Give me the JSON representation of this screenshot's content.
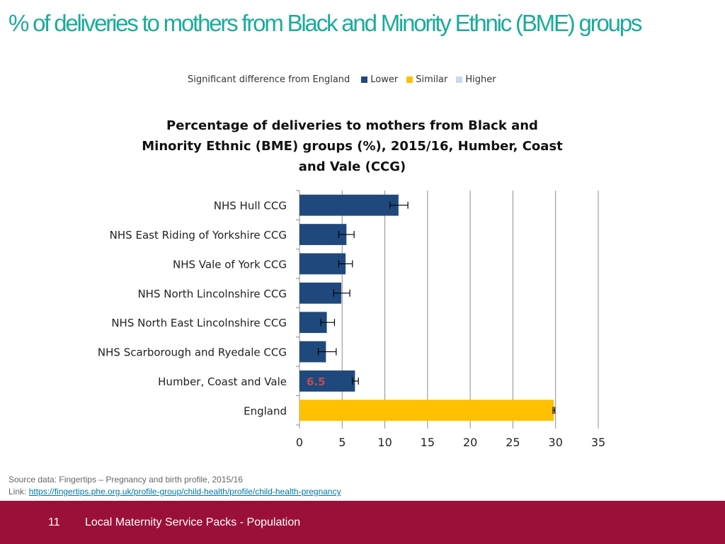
{
  "slide": {
    "title": "% of deliveries to mothers from Black and Minority Ethnic (BME) groups"
  },
  "legend": {
    "title": "Significant difference from England",
    "items": [
      {
        "label": "Lower",
        "color": "#1f497d"
      },
      {
        "label": "Similar",
        "color": "#ffc000"
      },
      {
        "label": "Higher",
        "color": "#c6d9f1"
      }
    ]
  },
  "chart_data": {
    "type": "bar",
    "orientation": "horizontal",
    "title": "Percentage of deliveries to mothers from Black and Minority Ethnic (BME) groups (%), 2015/16, Humber, Coast and Vale (CCG)",
    "xlabel": "",
    "ylabel": "",
    "xlim": [
      0,
      35
    ],
    "xticks": [
      0,
      5,
      10,
      15,
      20,
      25,
      30,
      35
    ],
    "grid": true,
    "categories": [
      "NHS Hull CCG",
      "NHS East Riding of Yorkshire CCG",
      "NHS Vale of York CCG",
      "NHS North Lincolnshire CCG",
      "NHS North East Lincolnshire CCG",
      "NHS Scarborough and Ryedale CCG",
      "Humber, Coast and Vale",
      "England"
    ],
    "values": [
      11.6,
      5.5,
      5.4,
      4.9,
      3.2,
      3.1,
      6.5,
      29.8
    ],
    "ci_lower": [
      10.6,
      4.6,
      4.6,
      4.0,
      2.5,
      2.2,
      6.2,
      29.7
    ],
    "ci_upper": [
      12.7,
      6.4,
      6.2,
      5.9,
      4.1,
      4.3,
      6.9,
      29.9
    ],
    "significance": [
      "Lower",
      "Lower",
      "Lower",
      "Lower",
      "Lower",
      "Lower",
      "Lower",
      "Similar"
    ],
    "data_labels": [
      {
        "category": "Humber, Coast and Vale",
        "text": "6.5",
        "color": "#c0504d"
      }
    ]
  },
  "source": {
    "line1": "Source data: Fingertips – Pregnancy and birth profile, 2015/16",
    "link_prefix": "Link: ",
    "link_text": "https://fingertips.phe.org.uk/profile-group/child-health/profile/child-health-pregnancy"
  },
  "footer": {
    "page_number": "11",
    "text": "Local Maternity Service Packs - Population"
  }
}
